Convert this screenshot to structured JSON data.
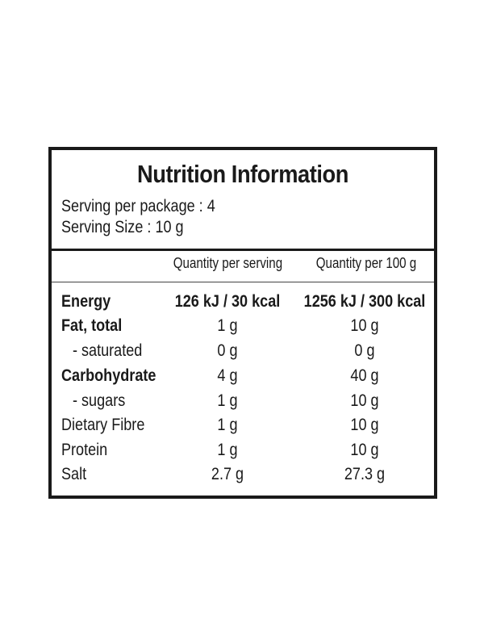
{
  "panel": {
    "title": "Nutrition Information",
    "serving_per_package": "Serving per package : 4",
    "serving_size": "Serving Size : 10 g"
  },
  "columns": {
    "per_serving": "Quantity per serving",
    "per_100g": "Quantity per 100 g"
  },
  "rows": [
    {
      "label": "Energy",
      "per_serving": "126 kJ / 30 kcal",
      "per_100g": "1256 kJ / 300 kcal"
    },
    {
      "label": "Fat, total",
      "per_serving": "1 g",
      "per_100g": "10 g"
    },
    {
      "label": "- saturated",
      "per_serving": "0 g",
      "per_100g": "0 g"
    },
    {
      "label": "Carbohydrate",
      "per_serving": "4 g",
      "per_100g": "40 g"
    },
    {
      "label": "- sugars",
      "per_serving": "1 g",
      "per_100g": "10 g"
    },
    {
      "label": "Dietary Fibre",
      "per_serving": "1 g",
      "per_100g": "10 g"
    },
    {
      "label": "Protein",
      "per_serving": "1 g",
      "per_100g": "10 g"
    },
    {
      "label": "Salt",
      "per_serving": "2.7 g",
      "per_100g": "27.3 g"
    }
  ]
}
